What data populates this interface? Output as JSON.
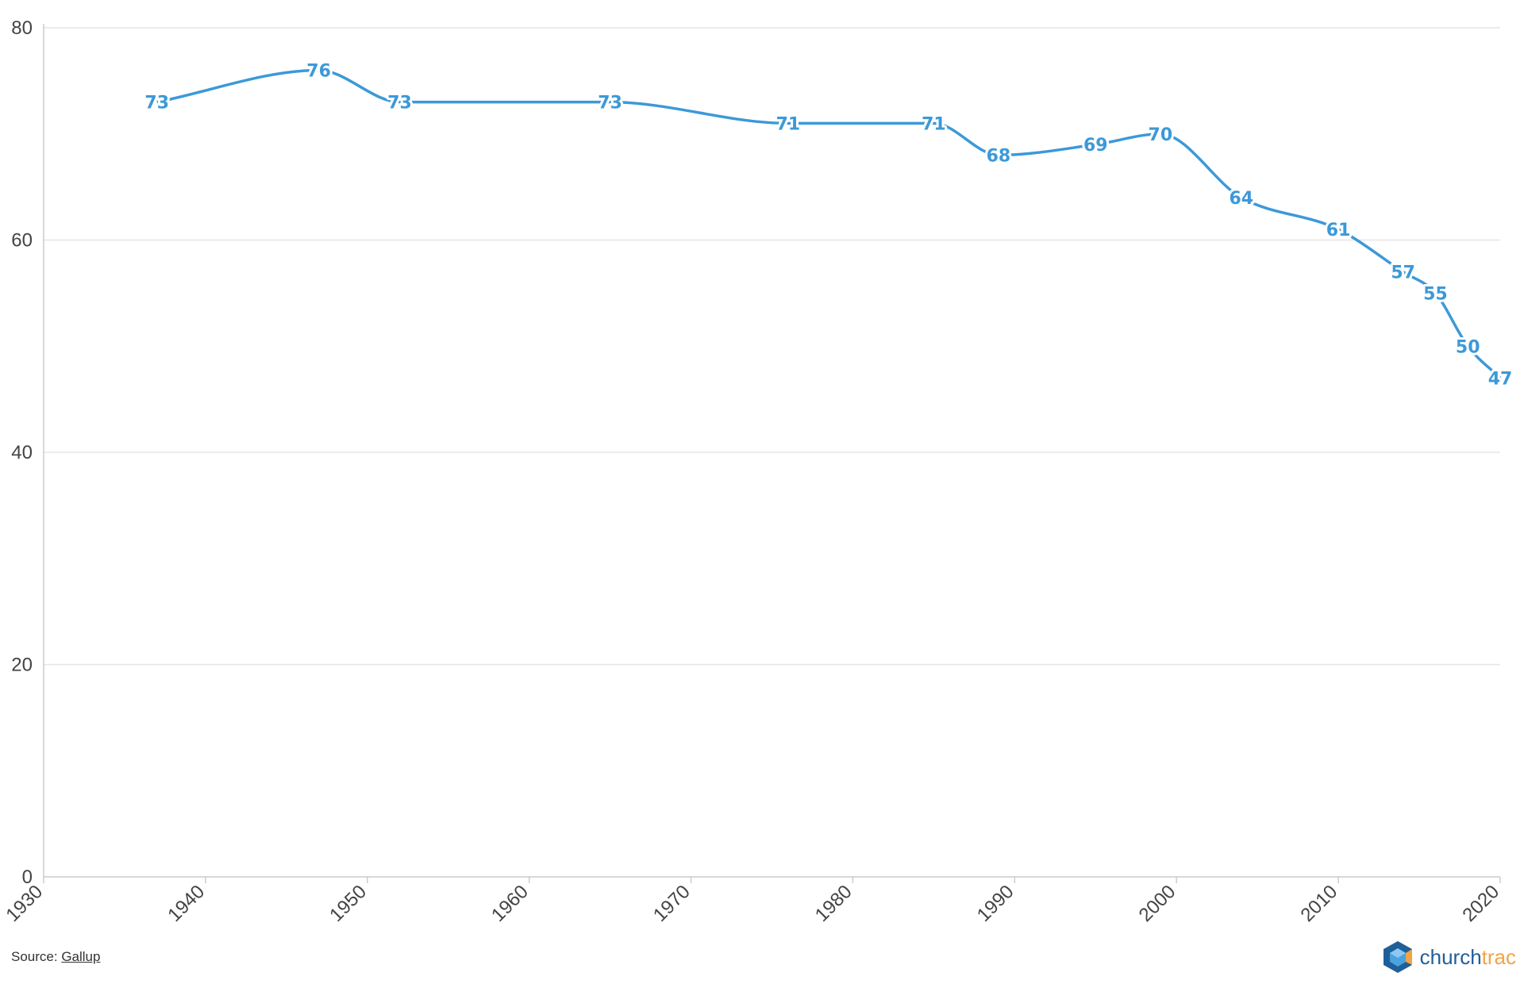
{
  "chart_data": {
    "type": "line",
    "title": "",
    "xlabel": "",
    "ylabel": "",
    "xlim": [
      1930,
      2020
    ],
    "ylim": [
      0,
      80
    ],
    "x_ticks": [
      "1930",
      "1940",
      "1950",
      "1960",
      "1970",
      "1980",
      "1990",
      "2000",
      "2010",
      "2020"
    ],
    "y_ticks": [
      "0",
      "20",
      "40",
      "60",
      "80"
    ],
    "grid": true,
    "legend": "none",
    "series": [
      {
        "color": "#3c99d8",
        "points": [
          {
            "x": 1937,
            "y": 73,
            "label": "73"
          },
          {
            "x": 1947,
            "y": 76,
            "label": "76"
          },
          {
            "x": 1952,
            "y": 73,
            "label": "73"
          },
          {
            "x": 1965,
            "y": 73,
            "label": "73"
          },
          {
            "x": 1976,
            "y": 71,
            "label": "71"
          },
          {
            "x": 1985,
            "y": 71,
            "label": "71"
          },
          {
            "x": 1989,
            "y": 68,
            "label": "68"
          },
          {
            "x": 1995,
            "y": 69,
            "label": "69"
          },
          {
            "x": 1999,
            "y": 70,
            "label": "70"
          },
          {
            "x": 2004,
            "y": 64,
            "label": "64"
          },
          {
            "x": 2010,
            "y": 61,
            "label": "61"
          },
          {
            "x": 2014,
            "y": 57,
            "label": "57"
          },
          {
            "x": 2016,
            "y": 55,
            "label": "55"
          },
          {
            "x": 2018,
            "y": 50,
            "label": "50"
          },
          {
            "x": 2020,
            "y": 47,
            "label": "47"
          }
        ]
      }
    ]
  },
  "footer": {
    "source_prefix": "Source: ",
    "source_link": "Gallup"
  },
  "brand": {
    "name_part1": "church",
    "name_part2": "trac",
    "logo_icon": "hexagon-cube-icon",
    "color_dark": "#1f5f99",
    "color_accent": "#f2a444"
  }
}
